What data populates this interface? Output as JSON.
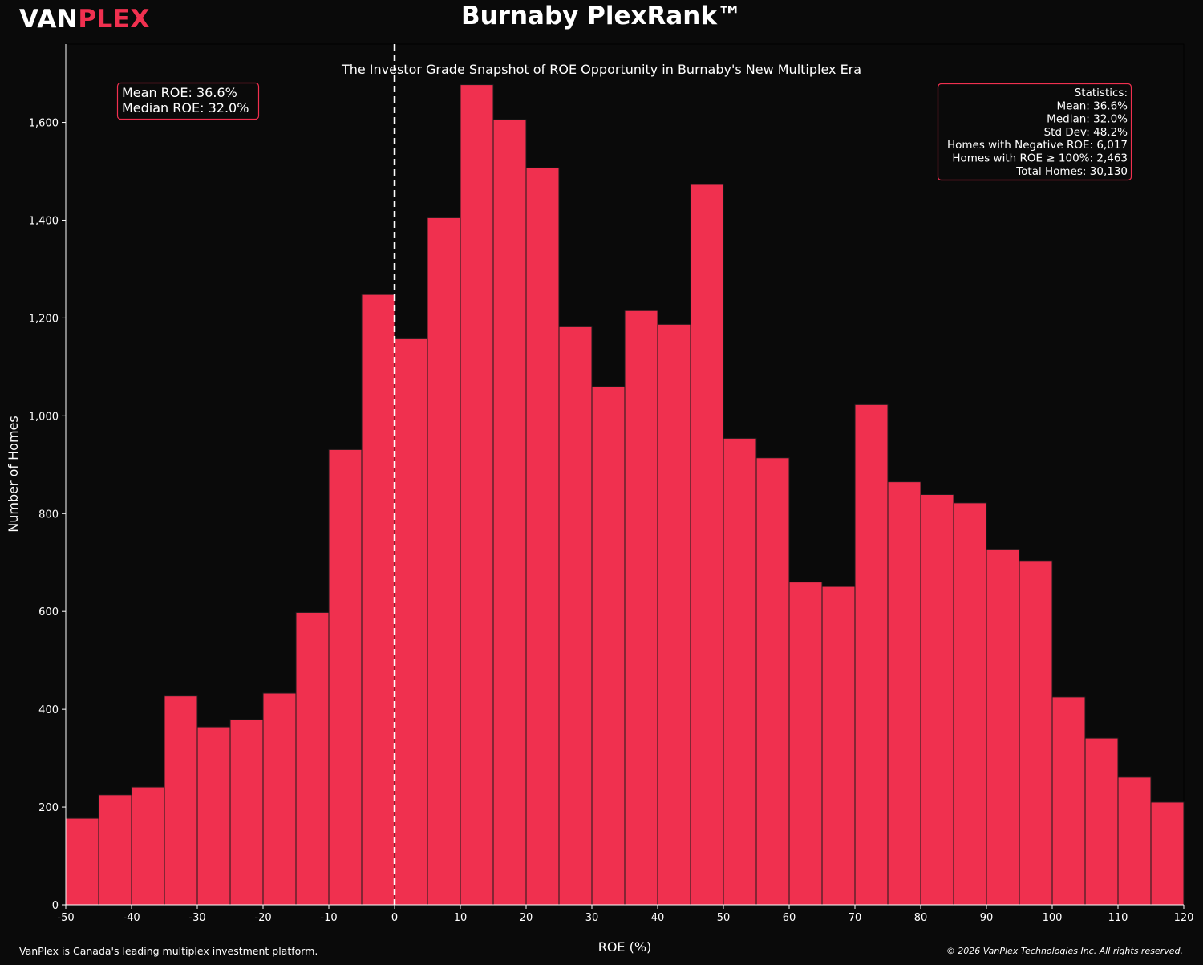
{
  "brand": {
    "part1": "VAN",
    "part2": "PLEX"
  },
  "footer": {
    "left": "VanPlex is Canada's leading multiplex investment platform.",
    "right": "© 2026 VanPlex Technologies Inc. All rights reserved."
  },
  "colors": {
    "bar": "#f0304f",
    "background": "#0a0a0a",
    "text": "#ffffff",
    "box_border": "#f0304f"
  },
  "chart_data": {
    "type": "bar",
    "title": "Burnaby PlexRank™",
    "subtitle": "The Investor Grade Snapshot of ROE Opportunity in Burnaby's New Multiplex Era",
    "xlabel": "ROE (%)",
    "ylabel": "Number of Homes",
    "xlim": [
      -50,
      120
    ],
    "ylim": [
      0,
      1760
    ],
    "bin_width": 5,
    "x_ticks": [
      -50,
      -40,
      -30,
      -20,
      -10,
      0,
      10,
      20,
      30,
      40,
      50,
      60,
      70,
      80,
      90,
      100,
      110,
      120
    ],
    "x_tick_labels": [
      "-50",
      "-40",
      "-30",
      "-20",
      "-10",
      "0",
      "10",
      "20",
      "30",
      "40",
      "50",
      "60",
      "70",
      "80",
      "90",
      "100",
      "110",
      "120"
    ],
    "y_ticks": [
      0,
      200,
      400,
      600,
      800,
      1000,
      1200,
      1400,
      1600
    ],
    "y_tick_labels": [
      "0",
      "200",
      "400",
      "600",
      "800",
      "1,000",
      "1,200",
      "1,400",
      "1,600"
    ],
    "bins": [
      {
        "start": -50,
        "end": -45,
        "count": 177
      },
      {
        "start": -45,
        "end": -40,
        "count": 225
      },
      {
        "start": -40,
        "end": -35,
        "count": 241
      },
      {
        "start": -35,
        "end": -30,
        "count": 427
      },
      {
        "start": -30,
        "end": -25,
        "count": 364
      },
      {
        "start": -25,
        "end": -20,
        "count": 379
      },
      {
        "start": -20,
        "end": -15,
        "count": 433
      },
      {
        "start": -15,
        "end": -10,
        "count": 598
      },
      {
        "start": -10,
        "end": -5,
        "count": 931
      },
      {
        "start": -5,
        "end": 0,
        "count": 1248
      },
      {
        "start": 0,
        "end": 5,
        "count": 1159
      },
      {
        "start": 5,
        "end": 10,
        "count": 1405
      },
      {
        "start": 10,
        "end": 15,
        "count": 1677
      },
      {
        "start": 15,
        "end": 20,
        "count": 1606
      },
      {
        "start": 20,
        "end": 25,
        "count": 1507
      },
      {
        "start": 25,
        "end": 30,
        "count": 1182
      },
      {
        "start": 30,
        "end": 35,
        "count": 1060
      },
      {
        "start": 35,
        "end": 40,
        "count": 1215
      },
      {
        "start": 40,
        "end": 45,
        "count": 1187
      },
      {
        "start": 45,
        "end": 50,
        "count": 1473
      },
      {
        "start": 50,
        "end": 55,
        "count": 954
      },
      {
        "start": 55,
        "end": 60,
        "count": 914
      },
      {
        "start": 60,
        "end": 65,
        "count": 660
      },
      {
        "start": 65,
        "end": 70,
        "count": 651
      },
      {
        "start": 70,
        "end": 75,
        "count": 1023
      },
      {
        "start": 75,
        "end": 80,
        "count": 865
      },
      {
        "start": 80,
        "end": 85,
        "count": 839
      },
      {
        "start": 85,
        "end": 90,
        "count": 822
      },
      {
        "start": 90,
        "end": 95,
        "count": 726
      },
      {
        "start": 95,
        "end": 100,
        "count": 704
      },
      {
        "start": 100,
        "end": 105,
        "count": 425
      },
      {
        "start": 105,
        "end": 110,
        "count": 341
      },
      {
        "start": 110,
        "end": 115,
        "count": 261
      },
      {
        "start": 115,
        "end": 120,
        "count": 210
      }
    ],
    "reference_line": {
      "x": 0,
      "style": "dashed",
      "color": "#ffffff"
    },
    "annotations": {
      "mean_box": [
        "Mean ROE: 36.6%",
        "Median ROE: 32.0%"
      ],
      "stats_box": [
        "Statistics:",
        "Mean: 36.6%",
        "Median: 32.0%",
        "Std Dev: 48.2%",
        "Homes with Negative ROE: 6,017",
        "Homes with ROE ≥ 100%: 2,463",
        "Total Homes: 30,130"
      ]
    },
    "grid": false,
    "legend": "none"
  }
}
